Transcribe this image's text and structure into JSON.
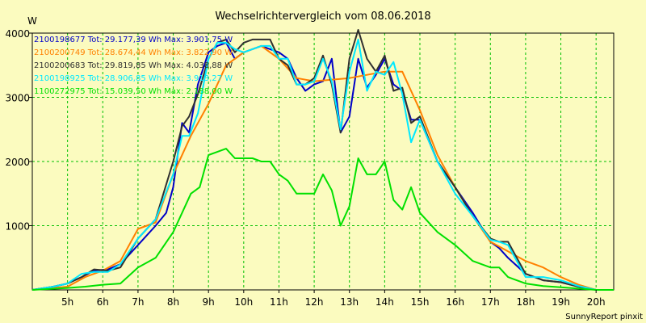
{
  "chart_data": {
    "type": "line",
    "title": "Wechselrichtervergleich vom 08.06.2018",
    "ylabel": "W",
    "footer": "SunnyReport pinxit",
    "xlim": [
      4.0,
      20.5
    ],
    "ylim": [
      0,
      4000
    ],
    "x_ticks": [
      {
        "x": 5,
        "label": "5h"
      },
      {
        "x": 6,
        "label": "6h"
      },
      {
        "x": 7,
        "label": "7h"
      },
      {
        "x": 8,
        "label": "8h"
      },
      {
        "x": 9,
        "label": "9h"
      },
      {
        "x": 10,
        "label": "10h"
      },
      {
        "x": 11,
        "label": "11h"
      },
      {
        "x": 12,
        "label": "12h"
      },
      {
        "x": 13,
        "label": "13h"
      },
      {
        "x": 14,
        "label": "14h"
      },
      {
        "x": 15,
        "label": "15h"
      },
      {
        "x": 16,
        "label": "16h"
      },
      {
        "x": 17,
        "label": "17h"
      },
      {
        "x": 18,
        "label": "18h"
      },
      {
        "x": 19,
        "label": "19h"
      },
      {
        "x": 20,
        "label": "20h"
      }
    ],
    "y_ticks": [
      {
        "y": 1000,
        "label": "1000"
      },
      {
        "y": 2000,
        "label": "2000"
      },
      {
        "y": 3000,
        "label": "3000"
      },
      {
        "y": 4000,
        "label": "4000"
      }
    ],
    "grid": true,
    "legend_position": "top-left",
    "series": [
      {
        "name": "2100198677 Tot: 29.177,39 Wh Max: 3.901,75 W",
        "color": "#0000c8",
        "x": [
          4.0,
          4.6,
          5.0,
          5.4,
          5.75,
          6.15,
          6.5,
          7.0,
          7.5,
          7.8,
          8.0,
          8.25,
          8.45,
          8.7,
          9.0,
          9.25,
          9.5,
          9.75,
          10.0,
          10.5,
          10.75,
          11.0,
          11.25,
          11.5,
          11.75,
          12.0,
          12.25,
          12.5,
          12.75,
          13.0,
          13.25,
          13.5,
          13.75,
          14.0,
          14.25,
          14.5,
          14.75,
          15.0,
          15.5,
          16.0,
          16.5,
          17.0,
          17.25,
          17.5,
          18.0,
          18.5,
          19.0,
          19.5,
          20.0,
          20.5
        ],
        "y": [
          0,
          50,
          100,
          200,
          300,
          320,
          400,
          700,
          1000,
          1200,
          1600,
          2600,
          2450,
          3200,
          3700,
          3800,
          3850,
          3600,
          3700,
          3800,
          3750,
          3700,
          3600,
          3300,
          3100,
          3200,
          3250,
          3600,
          2450,
          2700,
          3600,
          3150,
          3350,
          3600,
          3200,
          3100,
          2650,
          2650,
          2000,
          1600,
          1200,
          750,
          650,
          500,
          250,
          150,
          120,
          50,
          0,
          0
        ]
      },
      {
        "name": "2100200749 Tot: 28.674,44 Wh Max: 3.822,90 W",
        "color": "#ff8000",
        "x": [
          4.0,
          5.0,
          5.5,
          6.0,
          6.5,
          7.0,
          7.5,
          8.0,
          8.5,
          9.0,
          9.5,
          10.0,
          10.5,
          11.0,
          11.5,
          12.0,
          13.0,
          13.5,
          14.0,
          14.5,
          15.0,
          15.5,
          16.0,
          16.5,
          17.0,
          17.5,
          18.0,
          18.5,
          19.0,
          19.5,
          20.0,
          20.5
        ],
        "y": [
          0,
          50,
          200,
          300,
          450,
          950,
          1050,
          1800,
          2400,
          2900,
          3500,
          3700,
          3800,
          3600,
          3300,
          3250,
          3300,
          3350,
          3400,
          3400,
          2800,
          2100,
          1600,
          1150,
          750,
          600,
          450,
          350,
          200,
          80,
          0,
          0
        ]
      },
      {
        "name": "2100200683 Tot: 29.819,85 Wh Max: 4.038,88 W",
        "color": "#303030",
        "x": [
          4.0,
          4.6,
          5.0,
          5.4,
          5.75,
          6.15,
          6.5,
          7.0,
          7.5,
          8.0,
          8.25,
          8.45,
          8.7,
          9.0,
          9.25,
          9.5,
          9.75,
          10.0,
          10.25,
          10.5,
          10.75,
          11.0,
          11.25,
          11.5,
          11.75,
          12.0,
          12.25,
          12.5,
          12.75,
          13.0,
          13.25,
          13.5,
          13.75,
          14.0,
          14.25,
          14.5,
          14.75,
          15.0,
          15.5,
          16.0,
          16.5,
          17.0,
          17.25,
          17.5,
          18.0,
          18.5,
          19.0,
          19.5,
          20.0,
          20.5
        ],
        "y": [
          0,
          50,
          100,
          200,
          320,
          300,
          350,
          800,
          1100,
          2000,
          2550,
          2700,
          3050,
          3600,
          3850,
          3900,
          3700,
          3850,
          3900,
          3900,
          3900,
          3600,
          3500,
          3200,
          3200,
          3300,
          3650,
          3200,
          2450,
          3600,
          4050,
          3600,
          3400,
          3650,
          3100,
          3150,
          2600,
          2700,
          2000,
          1600,
          1150,
          800,
          750,
          750,
          250,
          150,
          120,
          50,
          0,
          0
        ]
      },
      {
        "name": "2100198925 Tot: 28.906,85 Wh Max: 3.913,27 W",
        "color": "#00e8ff",
        "x": [
          4.0,
          4.6,
          5.0,
          5.4,
          5.75,
          6.15,
          6.5,
          7.0,
          7.5,
          8.0,
          8.25,
          8.45,
          8.7,
          9.0,
          9.25,
          9.5,
          9.75,
          10.0,
          10.5,
          10.75,
          11.0,
          11.25,
          11.5,
          11.75,
          12.0,
          12.25,
          12.5,
          12.75,
          13.0,
          13.25,
          13.5,
          13.75,
          14.0,
          14.25,
          14.5,
          14.75,
          15.0,
          15.5,
          16.0,
          16.5,
          17.0,
          17.25,
          17.5,
          18.0,
          18.5,
          19.0,
          19.5,
          20.0,
          20.5
        ],
        "y": [
          0,
          50,
          100,
          250,
          280,
          280,
          400,
          800,
          1100,
          1800,
          2400,
          2400,
          2750,
          3600,
          3850,
          3850,
          3750,
          3700,
          3800,
          3800,
          3600,
          3600,
          3200,
          3200,
          3250,
          3600,
          3250,
          2500,
          3400,
          3900,
          3100,
          3400,
          3350,
          3550,
          3050,
          2300,
          2650,
          2000,
          1500,
          1150,
          780,
          750,
          700,
          200,
          200,
          150,
          60,
          0,
          0
        ]
      },
      {
        "name": "1100272975 Tot: 15.039,50 Wh Max: 2.188,00 W",
        "color": "#00e000",
        "x": [
          4.0,
          5.0,
          5.5,
          6.0,
          6.5,
          7.0,
          7.5,
          8.0,
          8.25,
          8.5,
          8.75,
          9.0,
          9.25,
          9.5,
          9.75,
          10.0,
          10.25,
          10.5,
          10.75,
          11.0,
          11.25,
          11.5,
          11.75,
          12.0,
          12.25,
          12.5,
          12.75,
          13.0,
          13.25,
          13.5,
          13.75,
          14.0,
          14.25,
          14.5,
          14.75,
          15.0,
          15.5,
          16.0,
          16.5,
          17.0,
          17.25,
          17.5,
          18.0,
          18.5,
          19.0,
          19.5,
          20.0,
          20.5
        ],
        "y": [
          0,
          30,
          50,
          80,
          100,
          350,
          500,
          900,
          1200,
          1500,
          1600,
          2100,
          2150,
          2200,
          2050,
          2050,
          2050,
          2000,
          2000,
          1800,
          1700,
          1500,
          1500,
          1500,
          1800,
          1550,
          1000,
          1300,
          2050,
          1800,
          1800,
          2000,
          1400,
          1250,
          1600,
          1200,
          900,
          700,
          450,
          350,
          350,
          200,
          100,
          60,
          40,
          20,
          0,
          0
        ]
      }
    ]
  }
}
